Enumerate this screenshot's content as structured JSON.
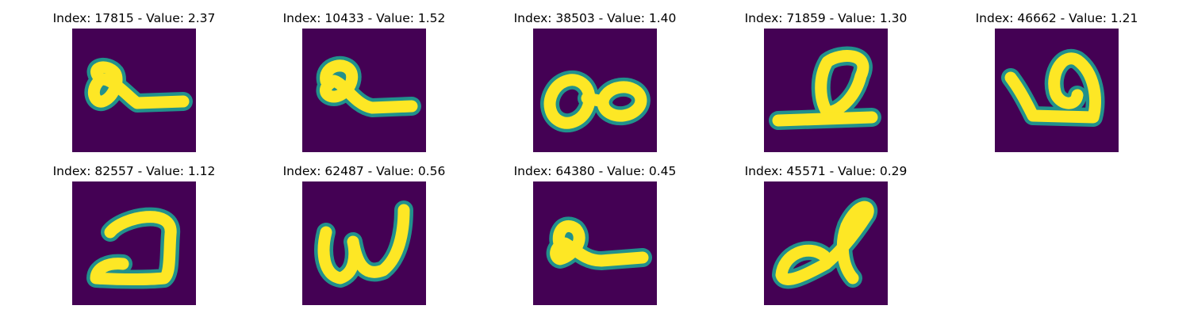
{
  "colormap": {
    "background": "#440154",
    "mid": "#21918c",
    "high": "#fde725"
  },
  "title_prefix_index": "Index: ",
  "title_separator_value": " - Value: ",
  "panels": [
    {
      "index": "17815",
      "value": "2.37",
      "title": "Index: 17815 - Value: 2.37",
      "glyph": "e-with-long-tail"
    },
    {
      "index": "10433",
      "value": "1.52",
      "title": "Index: 10433 - Value: 1.52",
      "glyph": "e-with-long-tail"
    },
    {
      "index": "38503",
      "value": "1.40",
      "title": "Index: 38503 - Value: 1.40",
      "glyph": "double-loop"
    },
    {
      "index": "71859",
      "value": "1.30",
      "title": "Index: 71859 - Value: 1.30",
      "glyph": "loop-on-baseline"
    },
    {
      "index": "46662",
      "value": "1.21",
      "title": "Index: 46662 - Value: 1.21",
      "glyph": "curled-loop"
    },
    {
      "index": "82557",
      "value": "1.12",
      "title": "Index: 82557 - Value: 1.12",
      "glyph": "hook-shape"
    },
    {
      "index": "62487",
      "value": "0.56",
      "title": "Index: 62487 - Value: 0.56",
      "glyph": "w-shape"
    },
    {
      "index": "64380",
      "value": "0.45",
      "title": "Index: 64380 - Value: 0.45",
      "glyph": "e-with-long-tail"
    },
    {
      "index": "45571",
      "value": "0.29",
      "title": "Index: 45571 - Value: 0.29",
      "glyph": "cursive-d"
    }
  ]
}
